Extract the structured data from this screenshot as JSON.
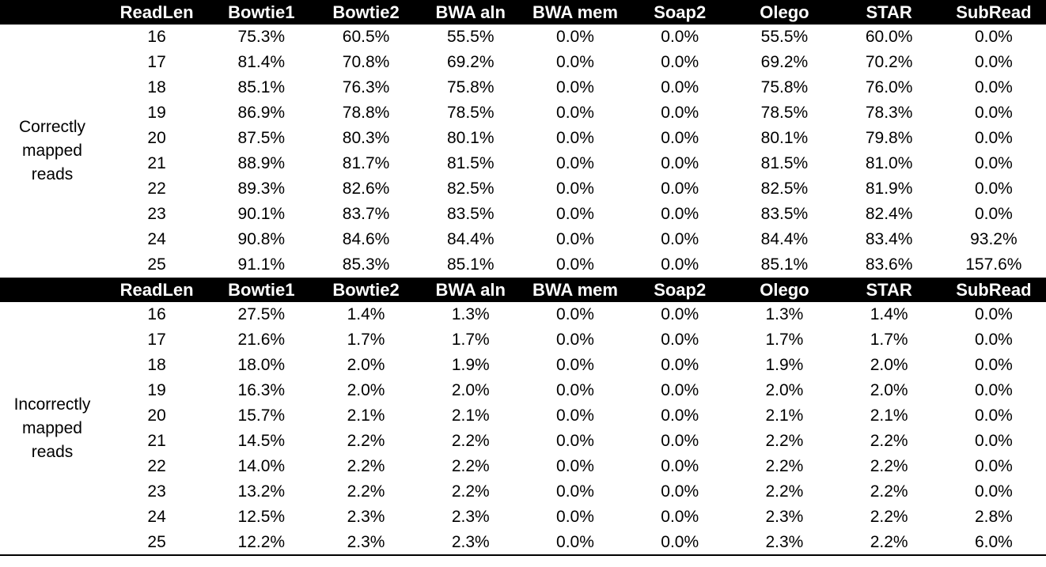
{
  "colors": {
    "header_bg": "#000000",
    "header_text": "#ffffff",
    "body_bg": "#ffffff",
    "body_text": "#000000"
  },
  "table": {
    "columns": [
      "ReadLen",
      "Bowtie1",
      "Bowtie2",
      "BWA aln",
      "BWA mem",
      "Soap2",
      "Olego",
      "STAR",
      "SubRead"
    ],
    "sections": [
      {
        "label": "Correctly mapped reads",
        "label_lines": [
          "Correctly",
          "mapped",
          "reads"
        ],
        "rows": [
          [
            "16",
            "75.3%",
            "60.5%",
            "55.5%",
            "0.0%",
            "0.0%",
            "55.5%",
            "60.0%",
            "0.0%"
          ],
          [
            "17",
            "81.4%",
            "70.8%",
            "69.2%",
            "0.0%",
            "0.0%",
            "69.2%",
            "70.2%",
            "0.0%"
          ],
          [
            "18",
            "85.1%",
            "76.3%",
            "75.8%",
            "0.0%",
            "0.0%",
            "75.8%",
            "76.0%",
            "0.0%"
          ],
          [
            "19",
            "86.9%",
            "78.8%",
            "78.5%",
            "0.0%",
            "0.0%",
            "78.5%",
            "78.3%",
            "0.0%"
          ],
          [
            "20",
            "87.5%",
            "80.3%",
            "80.1%",
            "0.0%",
            "0.0%",
            "80.1%",
            "79.8%",
            "0.0%"
          ],
          [
            "21",
            "88.9%",
            "81.7%",
            "81.5%",
            "0.0%",
            "0.0%",
            "81.5%",
            "81.0%",
            "0.0%"
          ],
          [
            "22",
            "89.3%",
            "82.6%",
            "82.5%",
            "0.0%",
            "0.0%",
            "82.5%",
            "81.9%",
            "0.0%"
          ],
          [
            "23",
            "90.1%",
            "83.7%",
            "83.5%",
            "0.0%",
            "0.0%",
            "83.5%",
            "82.4%",
            "0.0%"
          ],
          [
            "24",
            "90.8%",
            "84.6%",
            "84.4%",
            "0.0%",
            "0.0%",
            "84.4%",
            "83.4%",
            "93.2%"
          ],
          [
            "25",
            "91.1%",
            "85.3%",
            "85.1%",
            "0.0%",
            "0.0%",
            "85.1%",
            "83.6%",
            "157.6%"
          ]
        ]
      },
      {
        "label": "Incorrectly mapped reads",
        "label_lines": [
          "Incorrectly",
          "mapped",
          "reads"
        ],
        "rows": [
          [
            "16",
            "27.5%",
            "1.4%",
            "1.3%",
            "0.0%",
            "0.0%",
            "1.3%",
            "1.4%",
            "0.0%"
          ],
          [
            "17",
            "21.6%",
            "1.7%",
            "1.7%",
            "0.0%",
            "0.0%",
            "1.7%",
            "1.7%",
            "0.0%"
          ],
          [
            "18",
            "18.0%",
            "2.0%",
            "1.9%",
            "0.0%",
            "0.0%",
            "1.9%",
            "2.0%",
            "0.0%"
          ],
          [
            "19",
            "16.3%",
            "2.0%",
            "2.0%",
            "0.0%",
            "0.0%",
            "2.0%",
            "2.0%",
            "0.0%"
          ],
          [
            "20",
            "15.7%",
            "2.1%",
            "2.1%",
            "0.0%",
            "0.0%",
            "2.1%",
            "2.1%",
            "0.0%"
          ],
          [
            "21",
            "14.5%",
            "2.2%",
            "2.2%",
            "0.0%",
            "0.0%",
            "2.2%",
            "2.2%",
            "0.0%"
          ],
          [
            "22",
            "14.0%",
            "2.2%",
            "2.2%",
            "0.0%",
            "0.0%",
            "2.2%",
            "2.2%",
            "0.0%"
          ],
          [
            "23",
            "13.2%",
            "2.2%",
            "2.2%",
            "0.0%",
            "0.0%",
            "2.2%",
            "2.2%",
            "0.0%"
          ],
          [
            "24",
            "12.5%",
            "2.3%",
            "2.3%",
            "0.0%",
            "0.0%",
            "2.3%",
            "2.2%",
            "2.8%"
          ],
          [
            "25",
            "12.2%",
            "2.3%",
            "2.3%",
            "0.0%",
            "0.0%",
            "2.3%",
            "2.2%",
            "6.0%"
          ]
        ]
      }
    ]
  }
}
